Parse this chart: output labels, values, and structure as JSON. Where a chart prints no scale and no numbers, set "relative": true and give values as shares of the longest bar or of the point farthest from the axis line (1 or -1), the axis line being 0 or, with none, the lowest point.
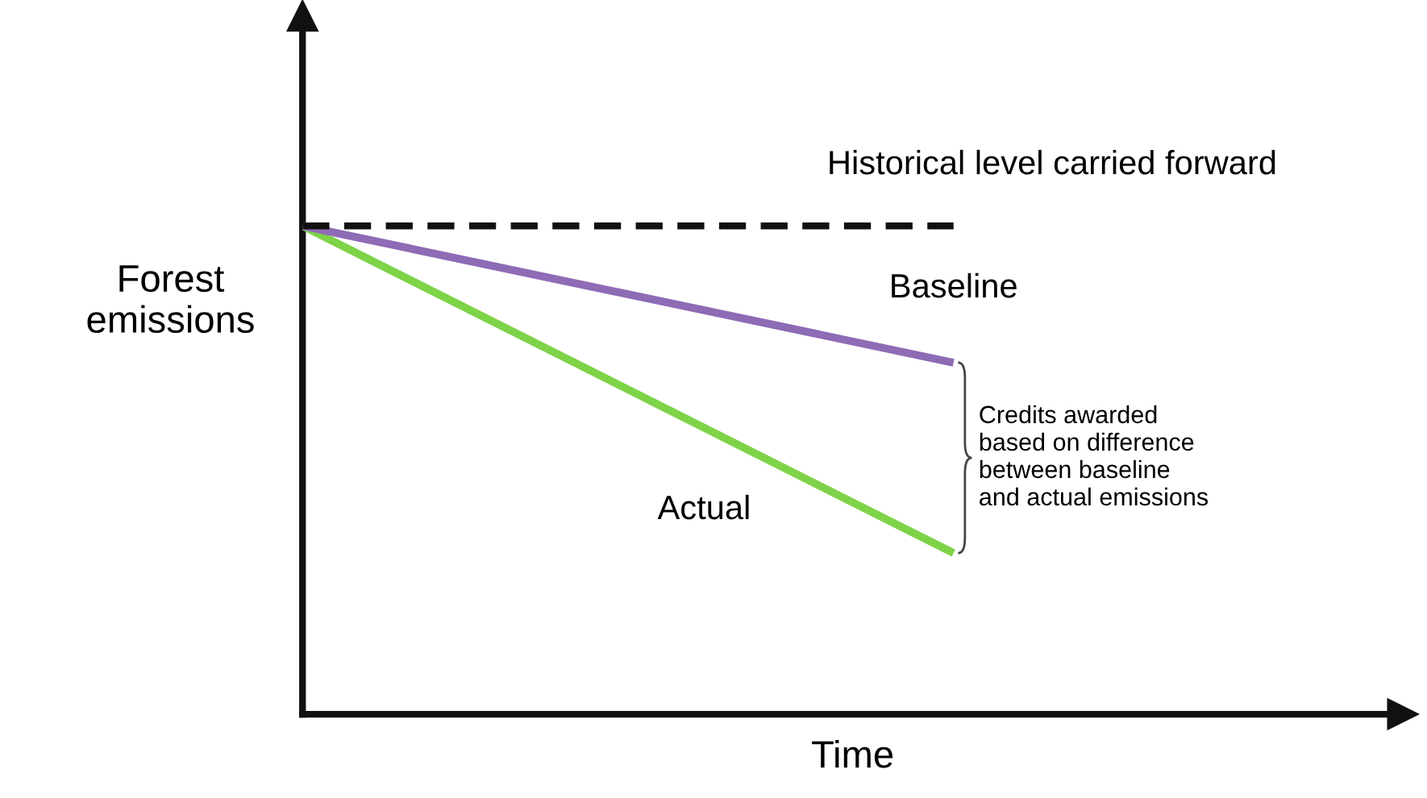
{
  "chart_data": {
    "type": "line",
    "relative": true,
    "xlabel": "Time",
    "ylabel": "Forest\nemissions",
    "categories": [
      null,
      null
    ],
    "grid": false,
    "legend": false,
    "marker": "none",
    "series": [
      {
        "name": "Historical level carried forward",
        "color": "#111111",
        "line_style": "dashed",
        "values": [
          1,
          1
        ]
      },
      {
        "name": "Baseline",
        "color": "#8e6bb5",
        "line_style": "solid",
        "values": [
          1,
          0.72
        ]
      },
      {
        "name": "Actual",
        "color": "#7ed348",
        "line_style": "solid",
        "values": [
          1,
          0.33
        ]
      }
    ],
    "annotations": [
      "Credits awarded\nbased on difference\nbetween baseline\nand actual emissions"
    ]
  }
}
